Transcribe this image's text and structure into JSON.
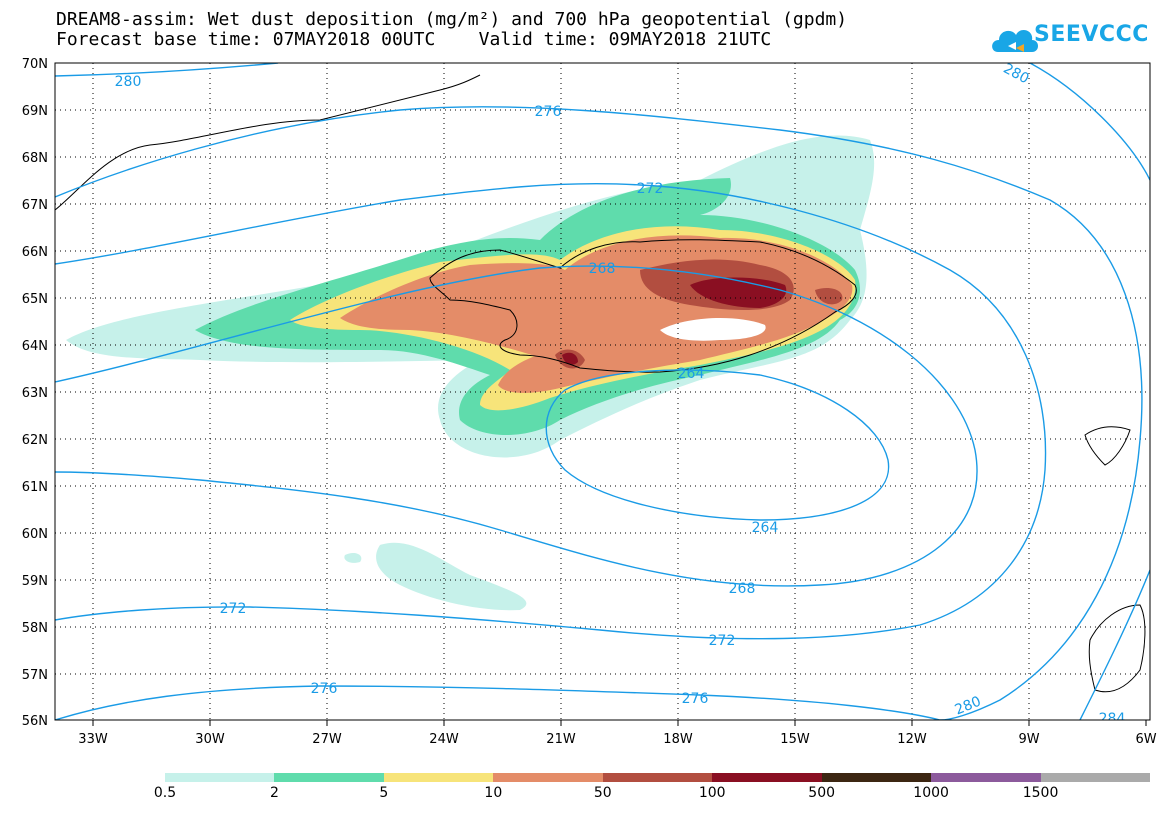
{
  "title_line1": "DREAM8-assim: Wet dust deposition (mg/m²) and 700 hPa geopotential (gpdm)",
  "title_line2": "Forecast base time: 07MAY2018 00UTC    Valid time: 09MAY2018 21UTC",
  "logo_text": "SEEVCCC",
  "lat_labels": [
    "70N",
    "69N",
    "68N",
    "67N",
    "66N",
    "65N",
    "64N",
    "63N",
    "62N",
    "61N",
    "60N",
    "59N",
    "58N",
    "57N",
    "56N"
  ],
  "lon_labels": [
    "33W",
    "30W",
    "27W",
    "24W",
    "21W",
    "18W",
    "15W",
    "12W",
    "9W",
    "6W"
  ],
  "contour_labels": [
    "280",
    "276",
    "272",
    "268",
    "264",
    "264",
    "268",
    "272",
    "276",
    "280",
    "272",
    "276",
    "280",
    "284"
  ],
  "legend": {
    "colors": [
      "#c6f1ea",
      "#5fdcac",
      "#f7e47a",
      "#e48c68",
      "#b24e40",
      "#8a0f22",
      "#3c2612",
      "#8c5a9c",
      "#aaaaaa"
    ],
    "labels": [
      "0.5",
      "2",
      "5",
      "10",
      "50",
      "100",
      "500",
      "1000",
      "1500"
    ]
  },
  "colors": {
    "contour": "#1a9be6",
    "coast": "#000000",
    "logo": "#19a6e6"
  }
}
